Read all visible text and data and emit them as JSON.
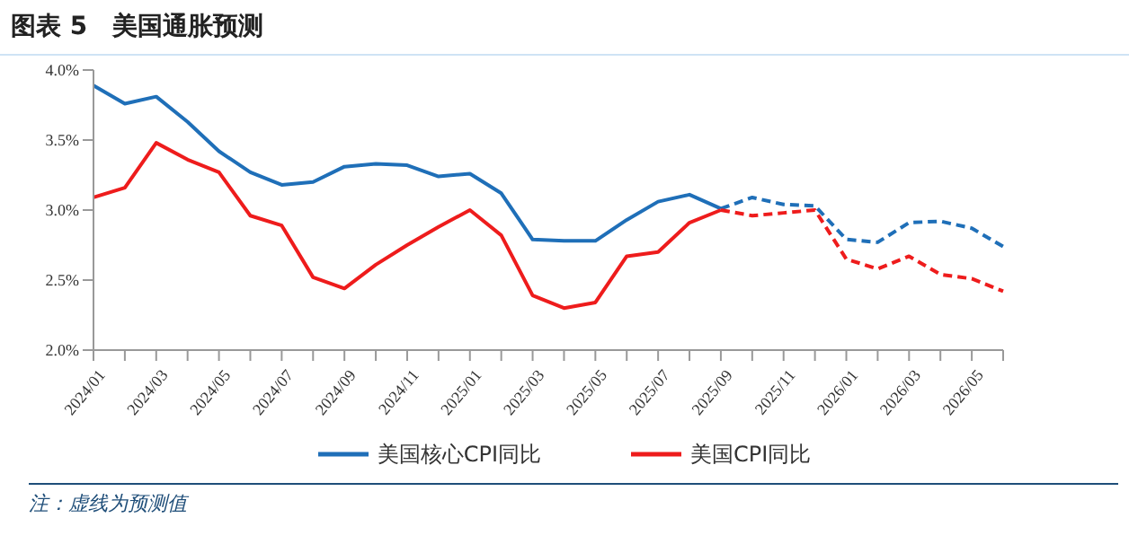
{
  "chart_data": {
    "type": "line",
    "title": "图表 5　美国通胀预测",
    "categories": [
      "2024/01",
      null,
      "2024/03",
      null,
      "2024/05",
      null,
      "2024/07",
      null,
      "2024/09",
      null,
      "2024/11",
      null,
      "2025/01",
      null,
      "2025/03",
      null,
      "2025/05",
      null,
      "2025/07",
      null,
      "2025/09",
      null,
      "2025/11",
      null,
      "2026/01",
      null,
      "2026/03",
      null,
      "2026/05",
      null
    ],
    "series": [
      {
        "name": "美国核心CPI同比",
        "color": "#1f6fb8",
        "line_style": "solid",
        "values": [
          3.89,
          3.76,
          3.81,
          3.63,
          3.42,
          3.27,
          3.18,
          3.2,
          3.31,
          3.33,
          3.32,
          3.24,
          3.26,
          3.12,
          2.79,
          2.78,
          2.78,
          2.93,
          3.06,
          3.11,
          3.01,
          null,
          null,
          null,
          null,
          null,
          null,
          null,
          null,
          null
        ]
      },
      {
        "name": "美国CPI同比",
        "color": "#ee1c1c",
        "line_style": "solid",
        "values": [
          3.09,
          3.16,
          3.48,
          3.36,
          3.27,
          2.96,
          2.89,
          2.52,
          2.44,
          2.61,
          2.75,
          2.88,
          3.0,
          2.82,
          2.39,
          2.3,
          2.34,
          2.67,
          2.7,
          2.91,
          3.0,
          null,
          null,
          null,
          null,
          null,
          null,
          null,
          null,
          null
        ]
      },
      {
        "color": "#1f6fb8",
        "line_style": "dashed",
        "values": [
          null,
          null,
          null,
          null,
          null,
          null,
          null,
          null,
          null,
          null,
          null,
          null,
          null,
          null,
          null,
          null,
          null,
          null,
          null,
          null,
          3.01,
          3.09,
          3.04,
          3.03,
          2.79,
          2.77,
          2.91,
          2.92,
          2.87,
          2.74
        ]
      },
      {
        "color": "#ee1c1c",
        "line_style": "dashed",
        "values": [
          null,
          null,
          null,
          null,
          null,
          null,
          null,
          null,
          null,
          null,
          null,
          null,
          null,
          null,
          null,
          null,
          null,
          null,
          null,
          null,
          3.0,
          2.96,
          2.98,
          3.0,
          2.65,
          2.58,
          2.67,
          2.54,
          2.51,
          2.42
        ]
      }
    ],
    "ylim": [
      2.0,
      4.0
    ],
    "yticks": [
      {
        "value": 2.0,
        "label": "2.0%"
      },
      {
        "value": 2.5,
        "label": "2.5%"
      },
      {
        "value": 3.0,
        "label": "3.0%"
      },
      {
        "value": 3.5,
        "label": "3.5%"
      },
      {
        "value": 4.0,
        "label": "4.0%"
      }
    ],
    "grid": false,
    "legend": "bottom",
    "marker": "none",
    "annotations": [
      "注：虚线为预测值"
    ]
  }
}
